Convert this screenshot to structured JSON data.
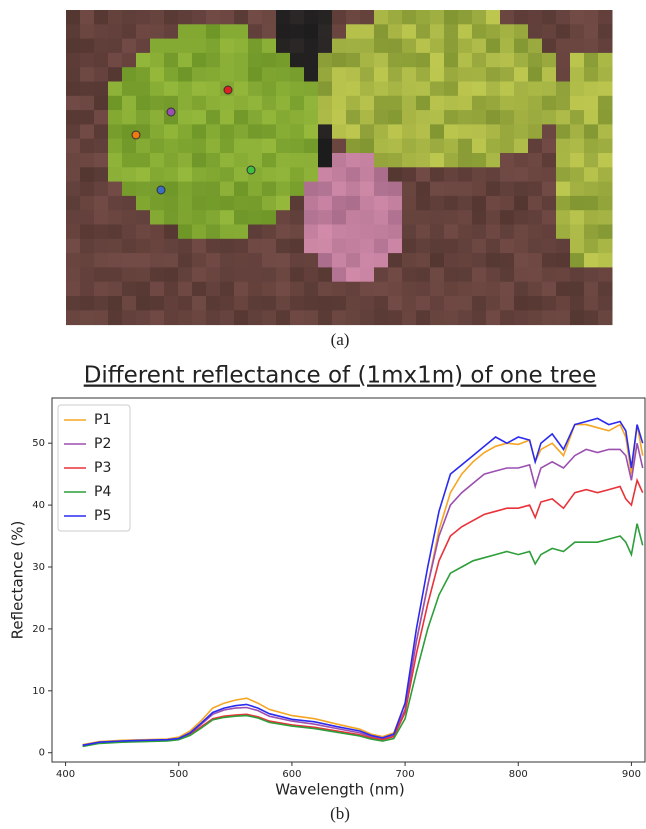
{
  "captions": [
    "(a)",
    "(b)"
  ],
  "chart_data": {
    "type": "line",
    "title": "Different reflectance of (1mx1m) of one tree",
    "x_label": "Wavelength (nm)",
    "y_label": "Reflectance (%)",
    "x": [
      415,
      430,
      450,
      470,
      490,
      500,
      510,
      520,
      530,
      540,
      550,
      560,
      570,
      580,
      600,
      620,
      640,
      660,
      670,
      680,
      690,
      700,
      710,
      720,
      730,
      740,
      750,
      760,
      770,
      780,
      790,
      800,
      810,
      815,
      820,
      830,
      840,
      850,
      860,
      870,
      880,
      890,
      895,
      900,
      905,
      910
    ],
    "series": [
      {
        "name": "P1",
        "color": "#f5a623",
        "values": [
          1.3,
          1.8,
          2.0,
          2.1,
          2.2,
          2.5,
          3.5,
          5.2,
          7.2,
          8.0,
          8.5,
          8.8,
          8.0,
          7.0,
          6.0,
          5.5,
          4.6,
          3.8,
          3.0,
          2.6,
          3.2,
          8,
          18,
          27,
          36,
          42,
          45,
          47,
          48.5,
          49.5,
          50,
          49.8,
          50.5,
          47,
          49,
          50,
          48,
          53,
          53,
          52.5,
          52,
          53,
          51,
          45,
          53,
          48
        ]
      },
      {
        "name": "P2",
        "color": "#9b4fb0",
        "values": [
          1.2,
          1.7,
          1.9,
          2.0,
          2.1,
          2.3,
          3.1,
          4.6,
          6.2,
          6.9,
          7.2,
          7.3,
          6.8,
          5.9,
          5.1,
          4.6,
          3.9,
          3.2,
          2.6,
          2.2,
          2.8,
          7,
          18,
          27,
          35,
          40,
          42,
          43.5,
          45,
          45.5,
          46,
          46,
          46.5,
          43,
          46,
          47,
          46,
          48,
          49,
          48.5,
          49,
          49,
          48,
          44,
          50,
          46
        ]
      },
      {
        "name": "P3",
        "color": "#e8333a",
        "values": [
          1.1,
          1.6,
          1.8,
          1.9,
          2.0,
          2.2,
          2.9,
          4.2,
          5.5,
          5.9,
          6.1,
          6.2,
          5.8,
          5.1,
          4.5,
          4.1,
          3.5,
          2.9,
          2.4,
          2.1,
          2.6,
          6.5,
          16,
          24,
          31,
          35,
          36.5,
          37.5,
          38.5,
          39,
          39.5,
          39.5,
          40,
          38,
          40.5,
          41,
          39.5,
          42,
          42.5,
          42,
          42.5,
          43,
          41,
          40,
          44,
          42
        ]
      },
      {
        "name": "P4",
        "color": "#2e9e3a",
        "values": [
          1.0,
          1.5,
          1.7,
          1.8,
          1.9,
          2.1,
          2.8,
          4.0,
          5.3,
          5.7,
          5.9,
          6.0,
          5.6,
          4.9,
          4.3,
          3.9,
          3.3,
          2.7,
          2.2,
          1.9,
          2.3,
          5.5,
          13,
          20,
          25.5,
          29,
          30,
          31,
          31.5,
          32,
          32.5,
          32,
          32.5,
          30.5,
          32,
          33,
          32.5,
          34,
          34,
          34,
          34.5,
          35,
          34,
          32,
          37,
          33.5
        ]
      },
      {
        "name": "P5",
        "color": "#2b2bf0",
        "values": [
          1.2,
          1.7,
          1.9,
          2.0,
          2.1,
          2.3,
          3.2,
          4.8,
          6.5,
          7.2,
          7.6,
          7.8,
          7.2,
          6.3,
          5.4,
          5.0,
          4.2,
          3.5,
          2.8,
          2.4,
          3.0,
          8,
          20,
          30,
          39,
          45,
          46.5,
          48,
          49.5,
          51,
          50,
          51,
          50.5,
          47,
          50,
          51.5,
          49,
          53,
          53.5,
          54,
          53,
          53.5,
          52,
          46,
          53,
          50
        ]
      }
    ],
    "xlim": [
      388,
      912
    ],
    "ylim": [
      -1.5,
      57.3
    ],
    "xticks": [
      400,
      500,
      600,
      700,
      800,
      900
    ],
    "yticks": [
      0,
      10,
      20,
      30,
      40,
      50
    ],
    "legend": "upper left",
    "grid": false
  }
}
